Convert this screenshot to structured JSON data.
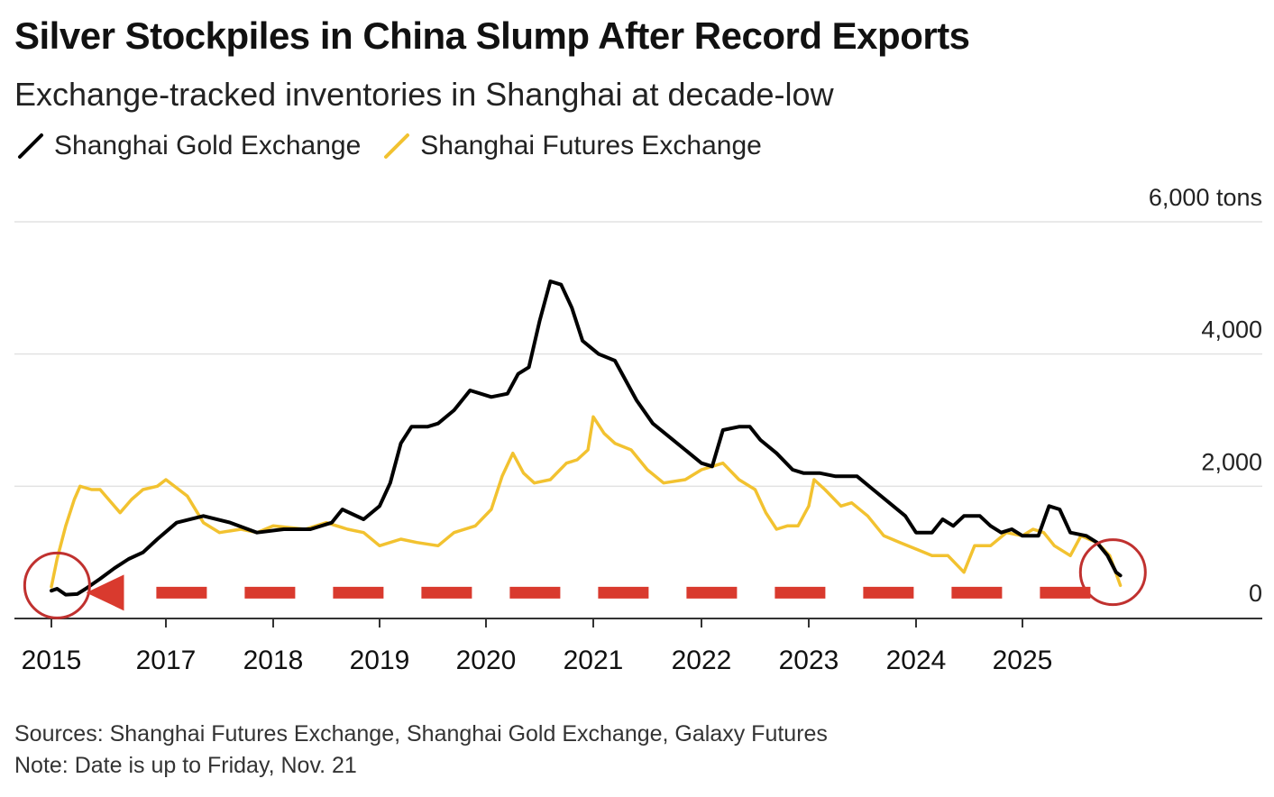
{
  "chart_data": {
    "type": "line",
    "title": "Silver Stockpiles in China Slump After Record Exports",
    "subtitle": "Exchange-tracked inventories in Shanghai at decade-low",
    "ylabel": "",
    "y_unit_label": "6,000 tons",
    "ylim": [
      0,
      6000
    ],
    "y_ticks": [
      0,
      2000,
      4000,
      6000
    ],
    "y_tick_labels": [
      "0",
      "2,000",
      "4,000",
      "6,000 tons"
    ],
    "x_ticks": [
      2015,
      2017,
      2018,
      2019,
      2020,
      2021,
      2022,
      2023,
      2024,
      2025
    ],
    "x_tick_labels": [
      "2015",
      "2017",
      "2018",
      "2019",
      "2020",
      "2021",
      "2022",
      "2023",
      "2024",
      "2025"
    ],
    "grid": true,
    "legend_position": "top-left",
    "series": [
      {
        "name": "Shanghai Gold Exchange",
        "color": "#000000",
        "points": [
          [
            2015.0,
            420
          ],
          [
            2015.1,
            450
          ],
          [
            2015.25,
            360
          ],
          [
            2015.45,
            370
          ],
          [
            2015.6,
            450
          ],
          [
            2015.85,
            600
          ],
          [
            2016.1,
            760
          ],
          [
            2016.35,
            900
          ],
          [
            2016.6,
            1000
          ],
          [
            2016.85,
            1200
          ],
          [
            2017.1,
            1450
          ],
          [
            2017.35,
            1550
          ],
          [
            2017.6,
            1450
          ],
          [
            2017.85,
            1300
          ],
          [
            2018.1,
            1350
          ],
          [
            2018.35,
            1350
          ],
          [
            2018.55,
            1450
          ],
          [
            2018.65,
            1650
          ],
          [
            2018.85,
            1500
          ],
          [
            2019.0,
            1700
          ],
          [
            2019.1,
            2050
          ],
          [
            2019.2,
            2650
          ],
          [
            2019.3,
            2900
          ],
          [
            2019.45,
            2900
          ],
          [
            2019.55,
            2950
          ],
          [
            2019.7,
            3150
          ],
          [
            2019.85,
            3450
          ],
          [
            2020.05,
            3350
          ],
          [
            2020.2,
            3400
          ],
          [
            2020.3,
            3700
          ],
          [
            2020.4,
            3800
          ],
          [
            2020.5,
            4500
          ],
          [
            2020.6,
            5100
          ],
          [
            2020.7,
            5050
          ],
          [
            2020.8,
            4700
          ],
          [
            2020.9,
            4200
          ],
          [
            2021.05,
            4000
          ],
          [
            2021.2,
            3900
          ],
          [
            2021.4,
            3300
          ],
          [
            2021.55,
            2950
          ],
          [
            2021.7,
            2750
          ],
          [
            2021.85,
            2550
          ],
          [
            2022.0,
            2350
          ],
          [
            2022.1,
            2300
          ],
          [
            2022.2,
            2850
          ],
          [
            2022.35,
            2900
          ],
          [
            2022.45,
            2900
          ],
          [
            2022.55,
            2700
          ],
          [
            2022.7,
            2500
          ],
          [
            2022.85,
            2250
          ],
          [
            2022.95,
            2200
          ],
          [
            2023.1,
            2200
          ],
          [
            2023.25,
            2150
          ],
          [
            2023.45,
            2150
          ],
          [
            2023.6,
            1950
          ],
          [
            2023.75,
            1750
          ],
          [
            2023.9,
            1550
          ],
          [
            2024.0,
            1300
          ],
          [
            2024.15,
            1300
          ],
          [
            2024.25,
            1500
          ],
          [
            2024.35,
            1400
          ],
          [
            2024.45,
            1550
          ],
          [
            2024.6,
            1550
          ],
          [
            2024.7,
            1400
          ],
          [
            2024.8,
            1300
          ],
          [
            2024.9,
            1350
          ],
          [
            2025.0,
            1250
          ],
          [
            2025.15,
            1250
          ],
          [
            2025.25,
            1700
          ],
          [
            2025.35,
            1650
          ],
          [
            2025.45,
            1300
          ],
          [
            2025.6,
            1250
          ],
          [
            2025.7,
            1150
          ],
          [
            2025.8,
            950
          ],
          [
            2025.88,
            700
          ],
          [
            2025.92,
            650
          ]
        ]
      },
      {
        "name": "Shanghai Futures Exchange",
        "color": "#F2C230",
        "points": [
          [
            2015.0,
            480
          ],
          [
            2015.1,
            900
          ],
          [
            2015.25,
            1400
          ],
          [
            2015.4,
            1800
          ],
          [
            2015.5,
            2000
          ],
          [
            2015.7,
            1950
          ],
          [
            2015.85,
            1950
          ],
          [
            2016.0,
            1800
          ],
          [
            2016.2,
            1600
          ],
          [
            2016.4,
            1800
          ],
          [
            2016.6,
            1950
          ],
          [
            2016.85,
            2000
          ],
          [
            2017.0,
            2100
          ],
          [
            2017.2,
            1850
          ],
          [
            2017.35,
            1450
          ],
          [
            2017.5,
            1300
          ],
          [
            2017.7,
            1350
          ],
          [
            2017.85,
            1300
          ],
          [
            2018.0,
            1400
          ],
          [
            2018.3,
            1350
          ],
          [
            2018.5,
            1450
          ],
          [
            2018.7,
            1350
          ],
          [
            2018.85,
            1300
          ],
          [
            2019.0,
            1100
          ],
          [
            2019.2,
            1200
          ],
          [
            2019.35,
            1150
          ],
          [
            2019.55,
            1100
          ],
          [
            2019.7,
            1300
          ],
          [
            2019.9,
            1400
          ],
          [
            2020.05,
            1650
          ],
          [
            2020.15,
            2150
          ],
          [
            2020.25,
            2500
          ],
          [
            2020.35,
            2200
          ],
          [
            2020.45,
            2050
          ],
          [
            2020.6,
            2100
          ],
          [
            2020.75,
            2350
          ],
          [
            2020.85,
            2400
          ],
          [
            2020.95,
            2550
          ],
          [
            2021.0,
            3050
          ],
          [
            2021.1,
            2800
          ],
          [
            2021.2,
            2650
          ],
          [
            2021.35,
            2550
          ],
          [
            2021.5,
            2250
          ],
          [
            2021.65,
            2050
          ],
          [
            2021.85,
            2100
          ],
          [
            2022.0,
            2250
          ],
          [
            2022.1,
            2300
          ],
          [
            2022.2,
            2350
          ],
          [
            2022.35,
            2100
          ],
          [
            2022.5,
            1950
          ],
          [
            2022.6,
            1600
          ],
          [
            2022.7,
            1350
          ],
          [
            2022.8,
            1400
          ],
          [
            2022.9,
            1400
          ],
          [
            2023.0,
            1700
          ],
          [
            2023.05,
            2100
          ],
          [
            2023.15,
            1950
          ],
          [
            2023.3,
            1700
          ],
          [
            2023.4,
            1750
          ],
          [
            2023.55,
            1550
          ],
          [
            2023.7,
            1250
          ],
          [
            2023.85,
            1150
          ],
          [
            2024.0,
            1050
          ],
          [
            2024.15,
            950
          ],
          [
            2024.3,
            950
          ],
          [
            2024.45,
            700
          ],
          [
            2024.55,
            1100
          ],
          [
            2024.7,
            1100
          ],
          [
            2024.85,
            1300
          ],
          [
            2025.0,
            1250
          ],
          [
            2025.1,
            1350
          ],
          [
            2025.2,
            1300
          ],
          [
            2025.3,
            1100
          ],
          [
            2025.45,
            950
          ],
          [
            2025.55,
            1250
          ],
          [
            2025.7,
            1150
          ],
          [
            2025.82,
            950
          ],
          [
            2025.92,
            500
          ]
        ]
      }
    ],
    "annotations": [
      {
        "type": "circle",
        "color": "#C0312F",
        "x": 2015.1,
        "y": 500
      },
      {
        "type": "circle",
        "color": "#C0312F",
        "x": 2025.85,
        "y": 700
      },
      {
        "type": "dashed-arrow",
        "color": "#D93A2E",
        "from_x": 2025.3,
        "to_x": 2016.0,
        "y": 500
      }
    ]
  },
  "footer": {
    "sources": "Sources: Shanghai Futures Exchange, Shanghai Gold Exchange, Galaxy Futures",
    "note": "Note: Date is up to Friday, Nov. 21"
  }
}
